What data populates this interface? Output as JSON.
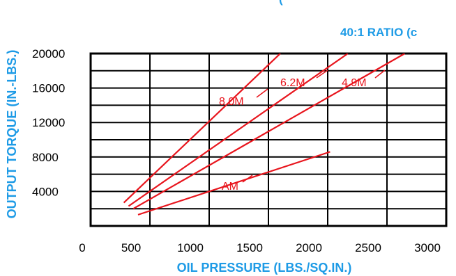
{
  "chart_data": {
    "type": "line",
    "title": "40:1 RATIO (c",
    "title_fragment": "(",
    "xlabel": "OIL PRESSURE (LBS./SQ.IN.)",
    "ylabel": "OUTPUT TORQUE (IN.-LBS.)",
    "xlim": [
      0,
      3000
    ],
    "ylim": [
      0,
      20000
    ],
    "xticks": [
      0,
      500,
      1000,
      1500,
      2000,
      2500,
      3000
    ],
    "yticks": [
      4000,
      8000,
      12000,
      16000,
      20000
    ],
    "grid": true,
    "series": [
      {
        "name": "8.0M",
        "x": [
          280,
          1600
        ],
        "y": [
          2700,
          20000
        ]
      },
      {
        "name": "6.2M",
        "x": [
          320,
          2170
        ],
        "y": [
          2300,
          20000
        ]
      },
      {
        "name": "4.9M",
        "x": [
          360,
          2650
        ],
        "y": [
          2000,
          20000
        ]
      },
      {
        "name": "AM",
        "x": [
          400,
          2020
        ],
        "y": [
          1300,
          8600
        ]
      }
    ],
    "colors": {
      "series": "#e8141c",
      "label": "#1e9be6",
      "axis": "#000000"
    }
  }
}
